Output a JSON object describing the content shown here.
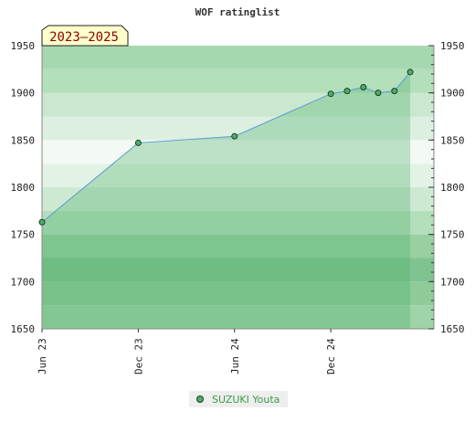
{
  "chart_data": {
    "type": "area",
    "title": "WOF ratinglist",
    "badge": "2023–2025",
    "ylim": [
      1650,
      1950
    ],
    "y_ticks": [
      1650,
      1700,
      1750,
      1800,
      1850,
      1900,
      1950
    ],
    "x_ticks": [
      {
        "label": "Jun 23",
        "date": "2023-06-01"
      },
      {
        "label": "Dec 23",
        "date": "2023-12-01"
      },
      {
        "label": "Jun 24",
        "date": "2024-06-01"
      },
      {
        "label": "Dec 24",
        "date": "2024-12-01"
      }
    ],
    "xlim": [
      "2023-06-01",
      "2025-06-15"
    ],
    "grid": true,
    "legend_position": "bottom-center",
    "series": [
      {
        "name": "SUZUKI Youta",
        "color": "#4caf6a",
        "points": [
          {
            "x": "2023-06-01",
            "y": 1763
          },
          {
            "x": "2023-12-01",
            "y": 1847
          },
          {
            "x": "2024-06-01",
            "y": 1854
          },
          {
            "x": "2024-12-01",
            "y": 1899
          },
          {
            "x": "2025-01-01",
            "y": 1902
          },
          {
            "x": "2025-02-01",
            "y": 1906
          },
          {
            "x": "2025-03-01",
            "y": 1900
          },
          {
            "x": "2025-04-01",
            "y": 1902
          },
          {
            "x": "2025-05-01",
            "y": 1922
          }
        ]
      }
    ]
  }
}
